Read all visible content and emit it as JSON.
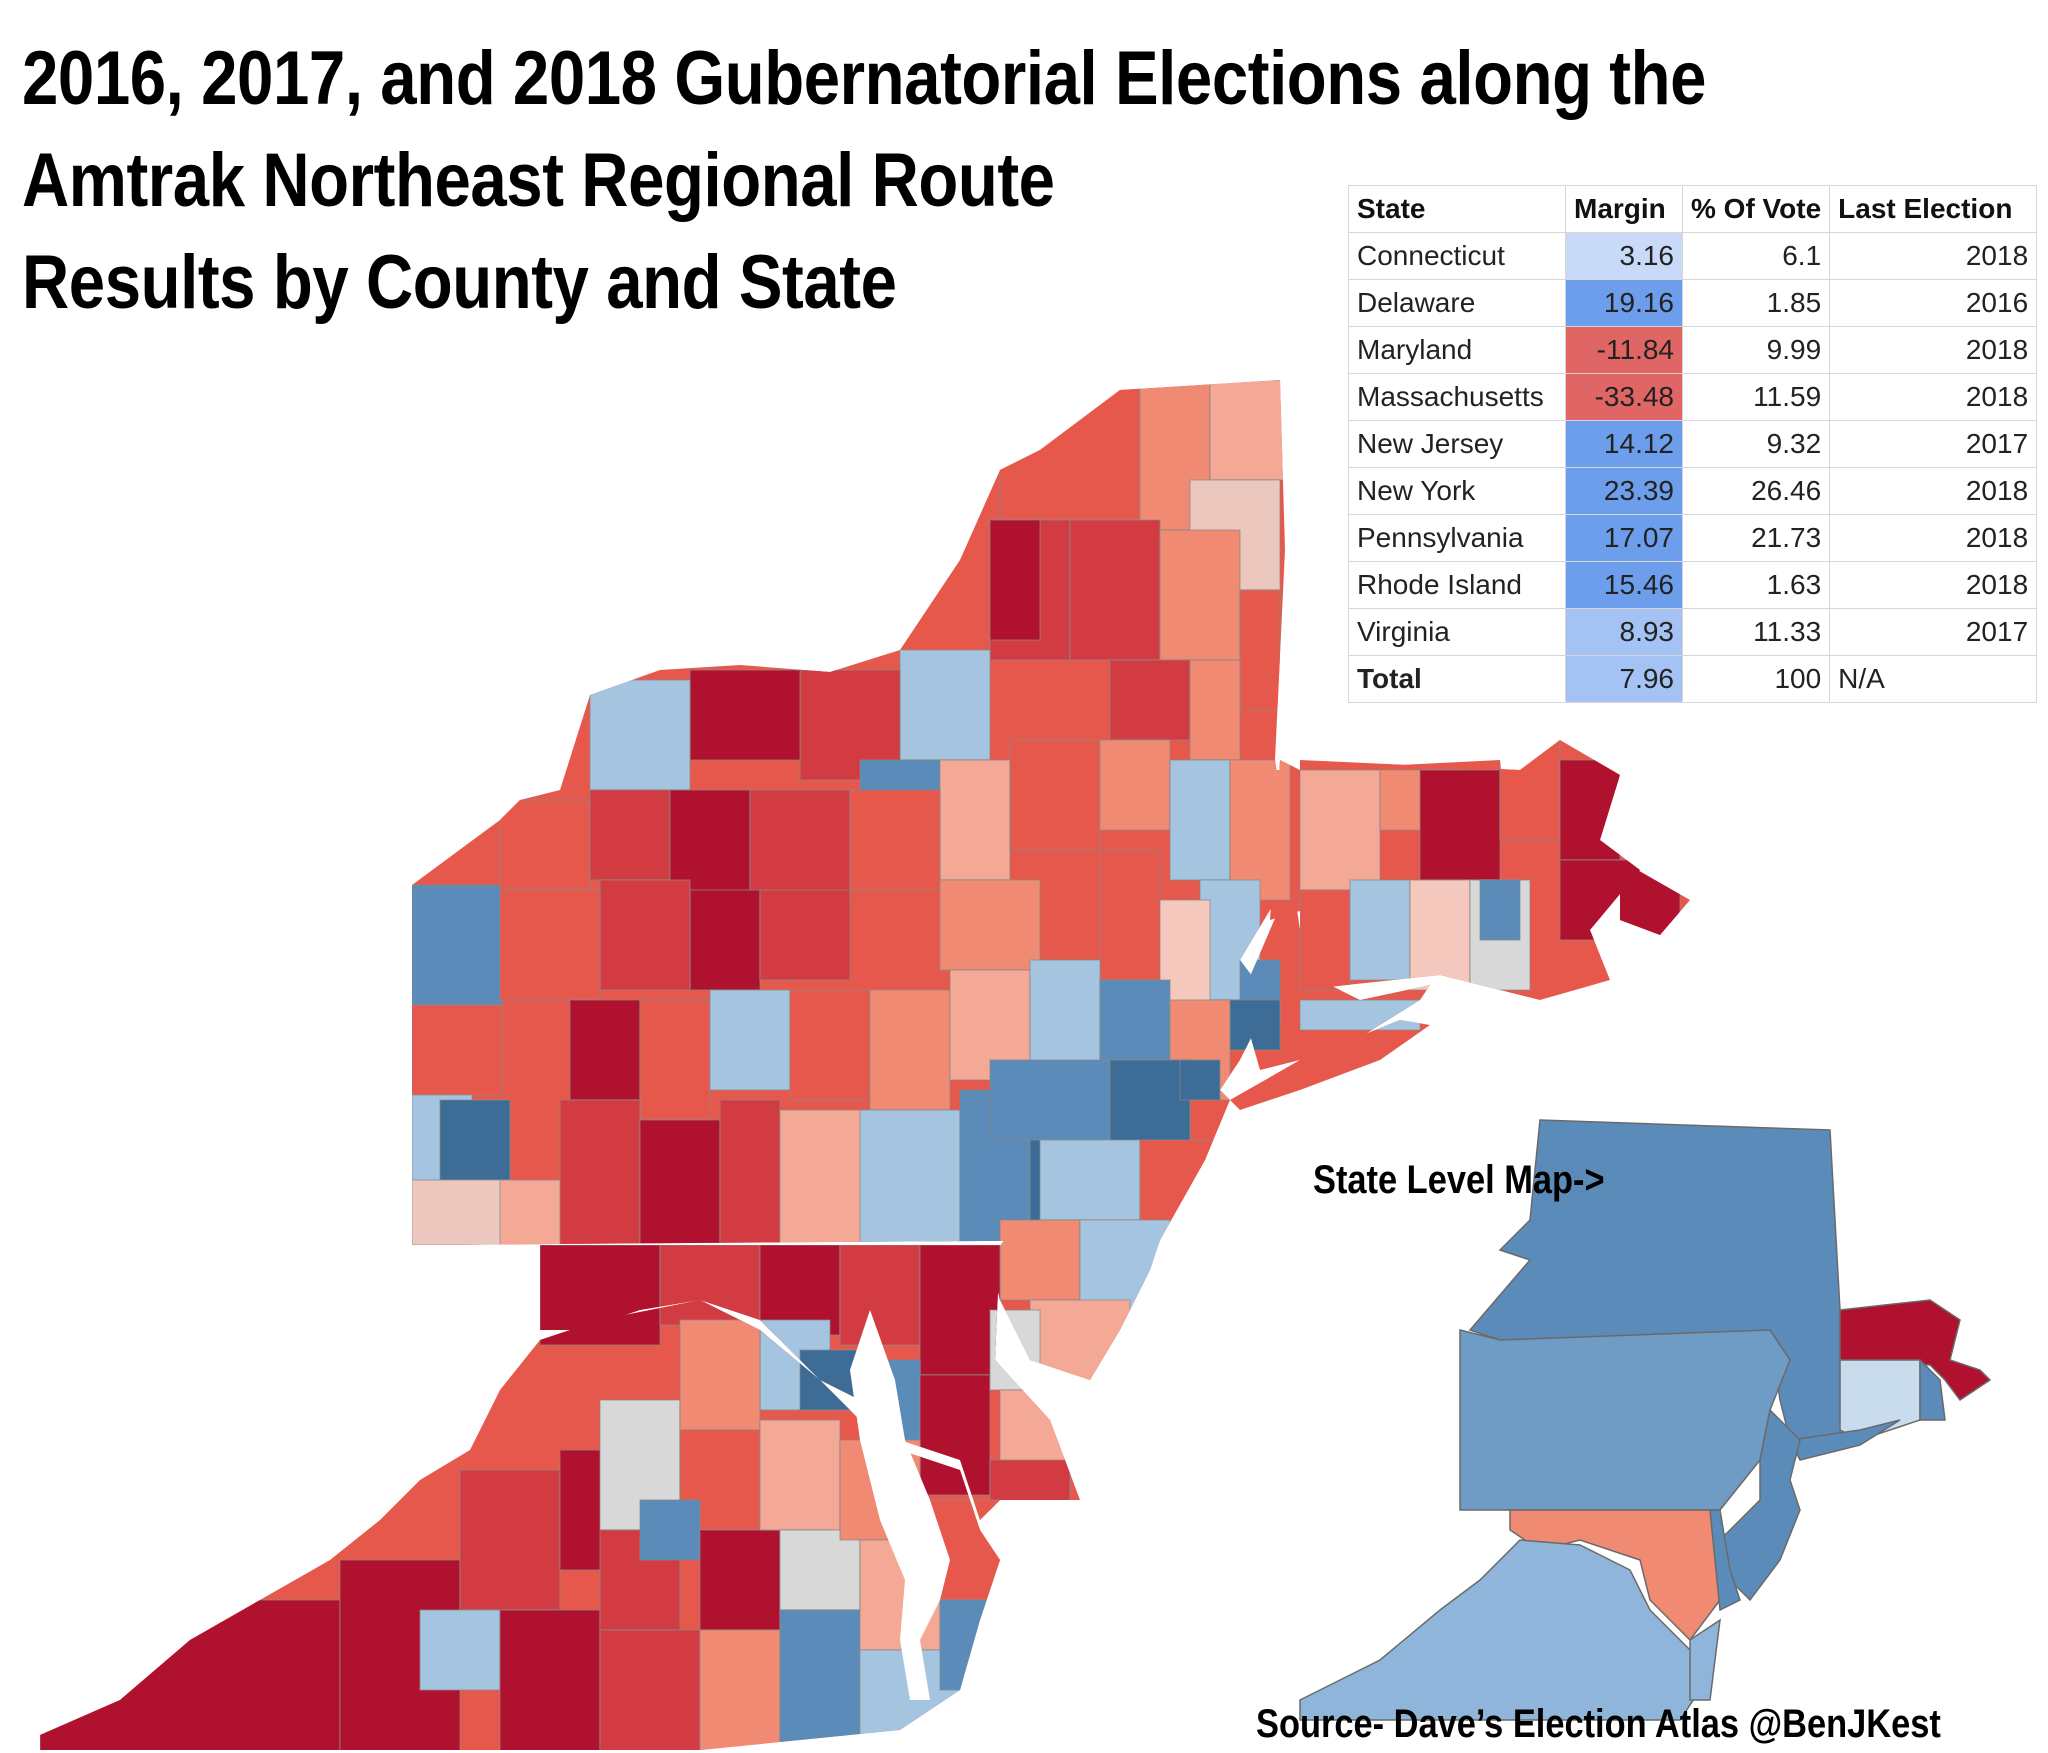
{
  "title_lines": [
    "2016, 2017, and 2018 Gubernatorial Elections along the",
    "Amtrak Northeast Regional Route",
    "Results by County and State"
  ],
  "table": {
    "headers": [
      "State",
      "Margin",
      "% Of Vote",
      "Last Election"
    ],
    "rows": [
      {
        "state": "Connecticut",
        "margin": "3.16",
        "vote": "6.1",
        "last": "2018",
        "color": "#c9daf8"
      },
      {
        "state": "Delaware",
        "margin": "19.16",
        "vote": "1.85",
        "last": "2016",
        "color": "#6d9eeb"
      },
      {
        "state": "Maryland",
        "margin": "-11.84",
        "vote": "9.99",
        "last": "2018",
        "color": "#e06666"
      },
      {
        "state": "Massachusetts",
        "margin": "-33.48",
        "vote": "11.59",
        "last": "2018",
        "color": "#e06666"
      },
      {
        "state": "New Jersey",
        "margin": "14.12",
        "vote": "9.32",
        "last": "2017",
        "color": "#6d9eeb"
      },
      {
        "state": "New York",
        "margin": "23.39",
        "vote": "26.46",
        "last": "2018",
        "color": "#6d9eeb"
      },
      {
        "state": "Pennsylvania",
        "margin": "17.07",
        "vote": "21.73",
        "last": "2018",
        "color": "#6d9eeb"
      },
      {
        "state": "Rhode Island",
        "margin": "15.46",
        "vote": "1.63",
        "last": "2018",
        "color": "#6d9eeb"
      },
      {
        "state": "Virginia",
        "margin": "8.93",
        "vote": "11.33",
        "last": "2017",
        "color": "#a4c2f4"
      }
    ],
    "total": {
      "state": "Total",
      "margin": "7.96",
      "vote": "100",
      "last": "N/A",
      "color": "#a4c2f4"
    }
  },
  "state_level_label": "State Level Map->",
  "source_label": "Source- Dave’s Election Atlas @BenJKest",
  "colors": {
    "dem_strong": "#3d6c96",
    "dem": "#5b8bb9",
    "dem_light": "#a5c4e0",
    "tossup": "#d8d8d8",
    "rep_light": "#f4a896",
    "rep": "#e7584c",
    "rep_mid": "#d33b42",
    "rep_strong": "#b0112e"
  }
}
